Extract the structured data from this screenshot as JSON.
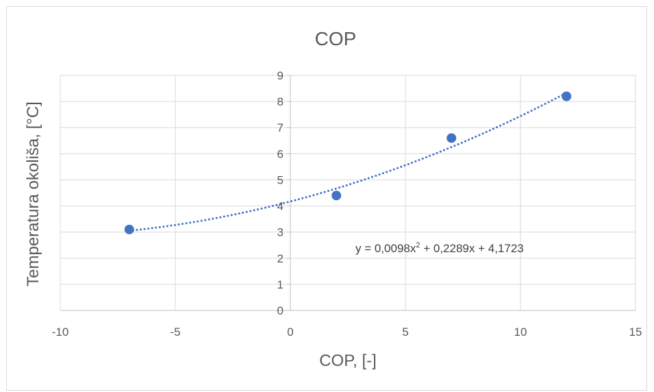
{
  "chart_data": {
    "type": "scatter",
    "title": "COP",
    "xlabel": "COP, [-]",
    "ylabel": "Temperatura okoliša, [°C]",
    "xlim": [
      -10,
      15
    ],
    "ylim": [
      0,
      9
    ],
    "xticks": [
      -10,
      -5,
      0,
      5,
      10,
      15
    ],
    "yticks": [
      0,
      1,
      2,
      3,
      4,
      5,
      6,
      7,
      8,
      9
    ],
    "grid": true,
    "points": [
      {
        "x": -7,
        "y": 3.1
      },
      {
        "x": 2,
        "y": 4.4
      },
      {
        "x": 7,
        "y": 6.6
      },
      {
        "x": 12,
        "y": 8.2
      }
    ],
    "trendline": {
      "type": "polynomial",
      "order": 2,
      "coefficients": [
        0.0098,
        0.2289,
        4.1723
      ],
      "x_range": [
        -7,
        12
      ],
      "equation_text": {
        "prefix": "y = 0,0098x",
        "superscript": "2",
        "suffix": " + 0,2289x + 4,1723"
      }
    },
    "colors": {
      "marker": "#4472c4",
      "trendline": "#4472c4",
      "grid": "#d9d9d9",
      "text": "#595959"
    }
  }
}
